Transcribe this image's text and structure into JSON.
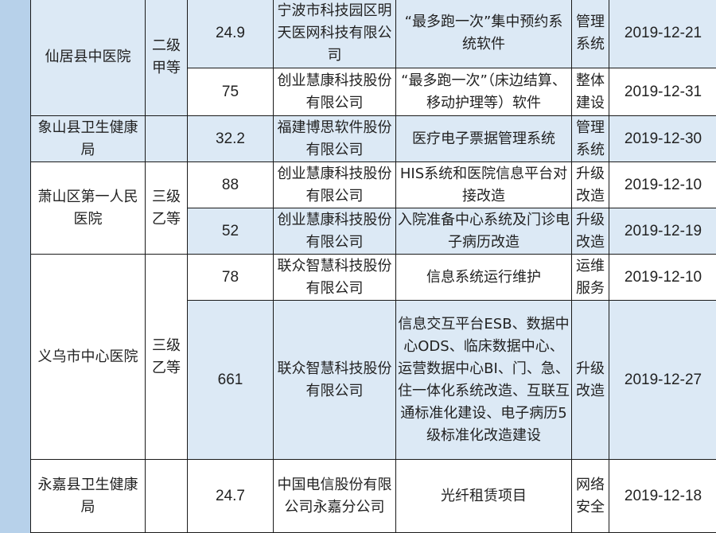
{
  "colors": {
    "row_highlight": "#dce9f5",
    "row_plain": "#ffffff",
    "side_strip": "#b7d1ea",
    "border": "#1a1a1a"
  },
  "rows": [
    {
      "hospital": "仙居县中医院",
      "level": "二级甲等",
      "amount": "24.9",
      "company": "宁波市科技园区明天医网科技有限公司",
      "project": "“最多跑一次”集中预约系统软件",
      "type": "管理系统",
      "date": "2019-12-21"
    },
    {
      "amount": "75",
      "company": "创业慧康科技股份有限公司",
      "project": "“最多跑一次”（床边结算、移动护理等）软件",
      "type": "整体建设",
      "date": "2019-12-31"
    },
    {
      "hospital": "象山县卫生健康局",
      "level": "",
      "amount": "32.2",
      "company": "福建博思软件股份有限公司",
      "project": "医疗电子票据管理系统",
      "type": "管理系统",
      "date": "2019-12-30"
    },
    {
      "hospital": "萧山区第一人民医院",
      "level": "三级乙等",
      "amount": "88",
      "company": "创业慧康科技股份有限公司",
      "project": "HIS系统和医院信息平台对接改造",
      "type": "升级改造",
      "date": "2019-12-10"
    },
    {
      "amount": "52",
      "company": "创业慧康科技股份有限公司",
      "project": "入院准备中心系统及门诊电子病历改造",
      "type": "升级改造",
      "date": "2019-12-19"
    },
    {
      "hospital": "义乌市中心医院",
      "level": "三级乙等",
      "amount": "78",
      "company": "联众智慧科技股份有限公司",
      "project": "信息系统运行维护",
      "type": "运维服务",
      "date": "2019-12-10"
    },
    {
      "amount": "661",
      "company": "联众智慧科技股份有限公司",
      "project": "信息交互平台ESB、数据中心ODS、临床数据中心、运营数据中心BI、门、急、住一体化系统改造、互联互通标准化建设、电子病历5级标准化改造建设",
      "type": "升级改造",
      "date": "2019-12-27"
    },
    {
      "hospital": "永嘉县卫生健康局",
      "level": "",
      "amount": "24.7",
      "company": "中国电信股份有限公司永嘉分公司",
      "project": "光纤租赁项目",
      "type": "网络安全",
      "date": "2019-12-18"
    }
  ]
}
